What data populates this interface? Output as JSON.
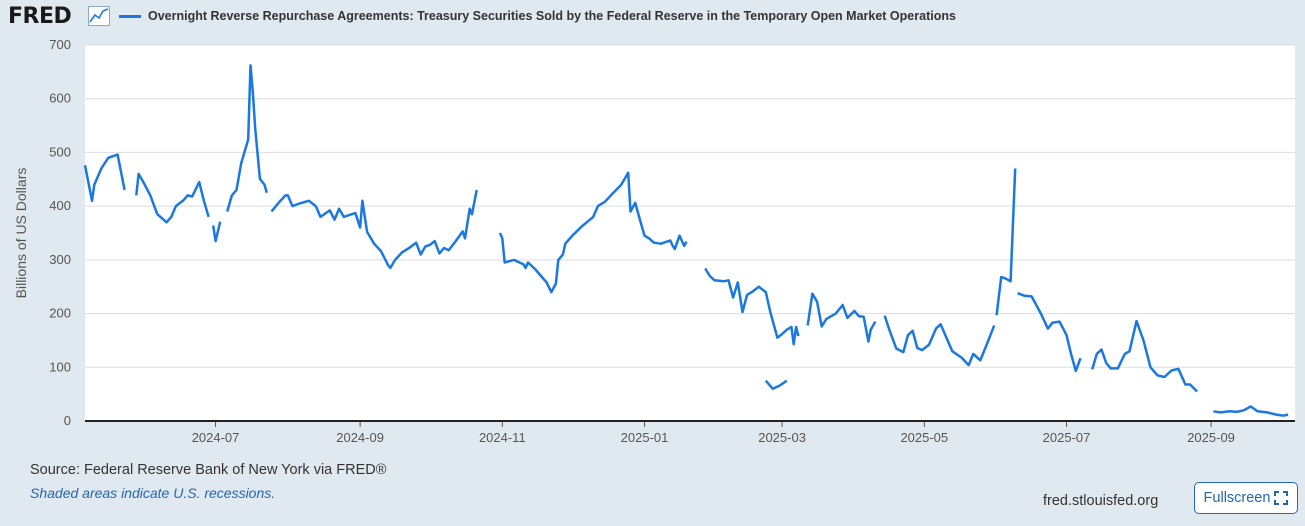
{
  "header": {
    "logo_text": "FRED",
    "logo_icon": "line-chart-icon",
    "series_title": "Overnight Reverse Repurchase Agreements: Treasury Securities Sold by the Federal Reserve in the Temporary Open Market Operations"
  },
  "footer": {
    "source": "Source: Federal Reserve Bank of New York via FRED®",
    "shaded_note": "Shaded areas indicate U.S. recessions.",
    "url": "fred.stlouisfed.org",
    "fullscreen_label": "Fullscreen",
    "fullscreen_icon": "expand-icon"
  },
  "colors": {
    "line": "#1a78e0",
    "plot_background": "#ffffff",
    "page_background": "#e1e9f0",
    "grid": "#dddddd",
    "link": "#2267b1"
  },
  "chart_data": {
    "type": "line",
    "title": "Overnight Reverse Repurchase Agreements: Treasury Securities Sold by the Federal Reserve in the Temporary Open Market Operations",
    "xlabel": "",
    "ylabel": "Billions of US Dollars",
    "ylim": [
      0,
      700
    ],
    "yticks": [
      0,
      100,
      200,
      300,
      400,
      500,
      600,
      700
    ],
    "xlim": [
      "2024-05-06",
      "2025-10-07"
    ],
    "xticks": [
      "2024-07-01",
      "2024-09-01",
      "2024-11-01",
      "2025-01-01",
      "2025-03-01",
      "2025-05-01",
      "2025-07-01",
      "2025-09-01"
    ],
    "xtick_labels": [
      "2024-07",
      "2024-09",
      "2024-11",
      "2025-01",
      "2025-03",
      "2025-05",
      "2025-07",
      "2025-09"
    ],
    "grid": true,
    "legend": "top-left",
    "series": [
      {
        "name": "Overnight Reverse Repurchase Agreements: Treasury Securities Sold by the Federal Reserve in the Temporary Open Market Operations",
        "segments": [
          [
            [
              "2024-05-06",
              476
            ],
            [
              "2024-05-09",
              410
            ],
            [
              "2024-05-10",
              440
            ],
            [
              "2024-05-13",
              470
            ],
            [
              "2024-05-16",
              490
            ],
            [
              "2024-05-20",
              496
            ],
            [
              "2024-05-23",
              430
            ]
          ],
          [
            [
              "2024-05-28",
              420
            ],
            [
              "2024-05-29",
              460
            ],
            [
              "2024-05-31",
              445
            ],
            [
              "2024-06-03",
              420
            ],
            [
              "2024-06-06",
              385
            ],
            [
              "2024-06-10",
              370
            ],
            [
              "2024-06-12",
              380
            ],
            [
              "2024-06-14",
              400
            ],
            [
              "2024-06-17",
              410
            ],
            [
              "2024-06-19",
              420
            ],
            [
              "2024-06-21",
              418
            ],
            [
              "2024-06-24",
              445
            ],
            [
              "2024-06-26",
              410
            ],
            [
              "2024-06-28",
              380
            ]
          ],
          [
            [
              "2024-06-30",
              364
            ],
            [
              "2024-07-01",
              335
            ],
            [
              "2024-07-03",
              371
            ]
          ],
          [
            [
              "2024-07-06",
              390
            ],
            [
              "2024-07-08",
              420
            ],
            [
              "2024-07-10",
              430
            ],
            [
              "2024-07-12",
              480
            ],
            [
              "2024-07-15",
              524
            ],
            [
              "2024-07-16",
              662
            ],
            [
              "2024-07-17",
              610
            ],
            [
              "2024-07-18",
              545
            ],
            [
              "2024-07-20",
              451
            ],
            [
              "2024-07-22",
              440
            ],
            [
              "2024-07-23",
              425
            ]
          ],
          [
            [
              "2024-07-25",
              390
            ],
            [
              "2024-07-28",
              406
            ],
            [
              "2024-07-31",
              420
            ],
            [
              "2024-08-01",
              420
            ],
            [
              "2024-08-03",
              400
            ],
            [
              "2024-08-06",
              405
            ],
            [
              "2024-08-10",
              410
            ],
            [
              "2024-08-13",
              400
            ],
            [
              "2024-08-15",
              380
            ],
            [
              "2024-08-19",
              392
            ],
            [
              "2024-08-21",
              375
            ],
            [
              "2024-08-23",
              395
            ],
            [
              "2024-08-25",
              380
            ],
            [
              "2024-08-27",
              383
            ],
            [
              "2024-08-30",
              387
            ],
            [
              "2024-09-01",
              360
            ],
            [
              "2024-09-02",
              410
            ],
            [
              "2024-09-04",
              352
            ],
            [
              "2024-09-07",
              330
            ],
            [
              "2024-09-10",
              316
            ],
            [
              "2024-09-13",
              290
            ],
            [
              "2024-09-14",
              285
            ],
            [
              "2024-09-16",
              300
            ],
            [
              "2024-09-19",
              314
            ],
            [
              "2024-09-22",
              322
            ],
            [
              "2024-09-25",
              332
            ],
            [
              "2024-09-27",
              310
            ],
            [
              "2024-09-29",
              325
            ],
            [
              "2024-10-01",
              328
            ],
            [
              "2024-10-03",
              335
            ],
            [
              "2024-10-05",
              312
            ],
            [
              "2024-10-07",
              322
            ],
            [
              "2024-10-09",
              318
            ],
            [
              "2024-10-12",
              335
            ],
            [
              "2024-10-15",
              353
            ],
            [
              "2024-10-16",
              340
            ],
            [
              "2024-10-18",
              395
            ],
            [
              "2024-10-19",
              385
            ],
            [
              "2024-10-21",
              430
            ]
          ]
        ],
        "note": "segments listed as [date, value] pairs; see segments_b for remainder"
      }
    ],
    "segments_b": [
      [
        [
          "2024-10-31",
          350
        ],
        [
          "2024-11-01",
          340
        ],
        [
          "2024-11-02",
          295
        ],
        [
          "2024-11-06",
          300
        ],
        [
          "2024-11-10",
          292
        ],
        [
          "2024-11-11",
          285
        ],
        [
          "2024-11-12",
          295
        ],
        [
          "2024-11-15",
          283
        ],
        [
          "2024-11-20",
          258
        ],
        [
          "2024-11-22",
          240
        ],
        [
          "2024-11-24",
          256
        ],
        [
          "2024-11-25",
          300
        ],
        [
          "2024-11-27",
          310
        ],
        [
          "2024-11-28",
          330
        ],
        [
          "2024-12-01",
          345
        ],
        [
          "2024-12-05",
          362
        ],
        [
          "2024-12-10",
          380
        ],
        [
          "2024-12-12",
          400
        ],
        [
          "2024-12-15",
          408
        ],
        [
          "2024-12-18",
          422
        ],
        [
          "2024-12-22",
          440
        ],
        [
          "2024-12-25",
          462
        ],
        [
          "2024-12-26",
          390
        ],
        [
          "2024-12-28",
          406
        ],
        [
          "2024-12-30",
          375
        ],
        [
          "2025-01-01",
          345
        ],
        [
          "2025-01-03",
          340
        ],
        [
          "2025-01-05",
          332
        ],
        [
          "2025-01-08",
          330
        ],
        [
          "2025-01-10",
          333
        ],
        [
          "2025-01-12",
          336
        ],
        [
          "2025-01-13",
          327
        ],
        [
          "2025-01-14",
          320
        ],
        [
          "2025-01-16",
          345
        ],
        [
          "2025-01-18",
          326
        ],
        [
          "2025-01-19",
          334
        ]
      ]
    ],
    "segments_c": [
      [
        [
          "2025-01-27",
          284
        ],
        [
          "2025-01-29",
          270
        ],
        [
          "2025-01-31",
          262
        ],
        [
          "2025-02-04",
          260
        ],
        [
          "2025-02-06",
          262
        ],
        [
          "2025-02-08",
          230
        ],
        [
          "2025-02-10",
          258
        ],
        [
          "2025-02-12",
          203
        ],
        [
          "2025-02-14",
          235
        ],
        [
          "2025-02-16",
          240
        ],
        [
          "2025-02-19",
          250
        ],
        [
          "2025-02-22",
          240
        ],
        [
          "2025-02-24",
          202
        ],
        [
          "2025-02-27",
          155
        ],
        [
          "2025-03-01",
          162
        ],
        [
          "2025-03-03",
          170
        ],
        [
          "2025-03-05",
          175
        ],
        [
          "2025-03-06",
          143
        ],
        [
          "2025-03-07",
          175
        ],
        [
          "2025-03-08",
          158
        ]
      ],
      [
        [
          "2025-03-10",
          168
        ]
      ],
      [
        [
          "2025-03-12",
          178
        ],
        [
          "2025-03-14",
          237
        ],
        [
          "2025-03-16",
          222
        ],
        [
          "2025-03-18",
          176
        ],
        [
          "2025-03-20",
          190
        ],
        [
          "2025-03-24",
          200
        ],
        [
          "2025-03-27",
          216
        ],
        [
          "2025-03-29",
          192
        ],
        [
          "2025-04-01",
          205
        ],
        [
          "2025-04-03",
          195
        ],
        [
          "2025-04-05",
          194
        ],
        [
          "2025-04-07",
          148
        ],
        [
          "2025-04-08",
          170
        ],
        [
          "2025-04-10",
          185
        ]
      ]
    ],
    "segments_d": [
      [
        [
          "2025-04-14",
          196
        ],
        [
          "2025-04-16",
          170
        ],
        [
          "2025-04-19",
          135
        ],
        [
          "2025-04-22",
          128
        ],
        [
          "2025-04-24",
          160
        ],
        [
          "2025-04-26",
          168
        ],
        [
          "2025-04-28",
          136
        ],
        [
          "2025-04-30",
          132
        ],
        [
          "2025-05-03",
          142
        ],
        [
          "2025-05-06",
          172
        ],
        [
          "2025-05-08",
          180
        ],
        [
          "2025-05-10",
          160
        ],
        [
          "2025-05-13",
          130
        ],
        [
          "2025-05-17",
          118
        ],
        [
          "2025-05-20",
          104
        ],
        [
          "2025-05-22",
          125
        ],
        [
          "2025-05-25",
          113
        ],
        [
          "2025-05-28",
          145
        ],
        [
          "2025-05-31",
          178
        ]
      ]
    ],
    "segments_e": [
      [
        [
          "2025-06-01",
          197
        ],
        [
          "2025-06-03",
          268
        ],
        [
          "2025-06-05",
          265
        ],
        [
          "2025-06-07",
          260
        ],
        [
          "2025-06-09",
          470
        ]
      ],
      [
        [
          "2025-06-10",
          238
        ],
        [
          "2025-06-13",
          233
        ],
        [
          "2025-06-16",
          232
        ],
        [
          "2025-06-20",
          200
        ],
        [
          "2025-06-23",
          172
        ],
        [
          "2025-06-25",
          183
        ],
        [
          "2025-06-28",
          185
        ],
        [
          "2025-07-01",
          160
        ],
        [
          "2025-07-03",
          124
        ],
        [
          "2025-07-05",
          93
        ],
        [
          "2025-07-07",
          117
        ]
      ],
      [
        [
          "2025-07-12",
          96
        ],
        [
          "2025-07-14",
          125
        ],
        [
          "2025-07-16",
          133
        ],
        [
          "2025-07-18",
          108
        ],
        [
          "2025-07-20",
          98
        ],
        [
          "2025-07-23",
          98
        ],
        [
          "2025-07-26",
          125
        ],
        [
          "2025-07-28",
          130
        ],
        [
          "2025-07-31",
          186
        ],
        [
          "2025-08-03",
          150
        ],
        [
          "2025-08-06",
          100
        ],
        [
          "2025-08-09",
          85
        ],
        [
          "2025-08-12",
          82
        ],
        [
          "2025-08-15",
          94
        ],
        [
          "2025-08-18",
          97
        ],
        [
          "2025-08-21",
          68
        ],
        [
          "2025-08-23",
          68
        ],
        [
          "2025-08-26",
          55
        ]
      ]
    ],
    "segments_f": [
      [
        [
          "2025-02-22",
          75
        ],
        [
          "2025-02-25",
          60
        ],
        [
          "2025-02-28",
          66
        ],
        [
          "2025-03-03",
          75
        ]
      ]
    ],
    "segments_g": [
      [
        [
          "2025-09-02",
          18
        ],
        [
          "2025-09-05",
          16
        ],
        [
          "2025-09-09",
          18
        ],
        [
          "2025-09-12",
          17
        ],
        [
          "2025-09-15",
          20
        ],
        [
          "2025-09-18",
          27
        ],
        [
          "2025-09-21",
          18
        ],
        [
          "2025-09-25",
          16
        ],
        [
          "2025-09-29",
          12
        ],
        [
          "2025-10-02",
          10
        ],
        [
          "2025-10-04",
          12
        ]
      ]
    ]
  }
}
